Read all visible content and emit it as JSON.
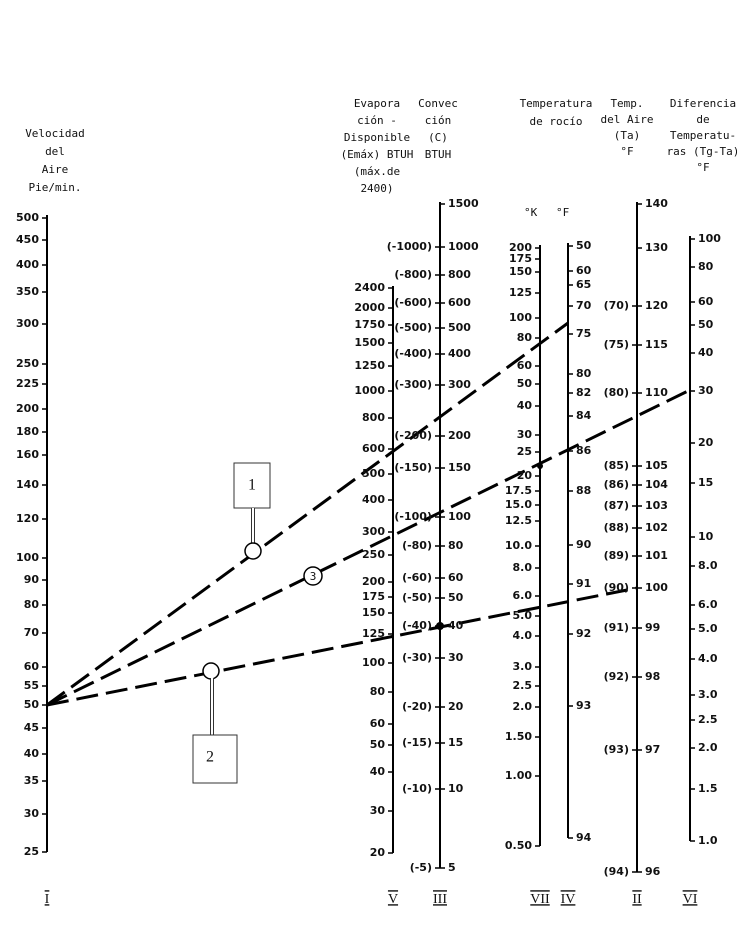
{
  "headers": {
    "velocity": [
      "Velocidad",
      "del",
      "Aire",
      "Pie/min."
    ],
    "evaporation": [
      "Evapora",
      "ción -",
      "Disponible",
      "(Emáx) BTUH",
      "(máx.de",
      "2400)"
    ],
    "convection": [
      "Convec",
      "ción",
      "(C)",
      "BTUH"
    ],
    "dew_point": [
      "Temperatura",
      "de rocío"
    ],
    "dew_units": [
      "°K",
      "°F"
    ],
    "air_temp": [
      "Temp.",
      "del Aire",
      "(Ta)",
      "°F"
    ],
    "difference": [
      "Diferencia",
      "de",
      "Temperatu-",
      "ras (Tg-Ta)",
      "°F"
    ]
  },
  "axes": [
    {
      "numeral": "I",
      "ticks": [
        "500",
        "450",
        "400",
        "350",
        "300",
        "250",
        "225",
        "200",
        "180",
        "160",
        "140",
        "120",
        "100",
        "90",
        "80",
        "70",
        "60",
        "55",
        "50",
        "45",
        "40",
        "35",
        "30",
        "25"
      ]
    },
    {
      "numeral": "V",
      "ticks": [
        "2400",
        "2000",
        "1750",
        "1500",
        "1250",
        "1000",
        "800",
        "600",
        "500",
        "400",
        "300",
        "250",
        "200",
        "175",
        "150",
        "125",
        "100",
        "80",
        "60",
        "50",
        "40",
        "30",
        "20"
      ]
    },
    {
      "numeral": "III",
      "ticks": [
        "1500",
        "1000",
        "800",
        "600",
        "500",
        "400",
        "300",
        "200",
        "150",
        "100",
        "80",
        "60",
        "50",
        "40",
        "30",
        "20",
        "15",
        "10",
        "5"
      ],
      "ticks_left": [
        "(-1000)",
        "(-800)",
        "(-600)",
        "(-500)",
        "(-400)",
        "(-300)",
        "(-200)",
        "(-150)",
        "(-100)",
        "(-80)",
        "(-60)",
        "(-50)",
        "(-40)",
        "(-30)",
        "(-20)",
        "(-15)",
        "(-10)",
        "(-5)"
      ]
    },
    {
      "numeral": "VII",
      "ticks": [
        "200",
        "175",
        "150",
        "125",
        "100",
        "80",
        "60",
        "50",
        "40",
        "30",
        "25",
        "20",
        "17.5",
        "15.0",
        "12.5",
        "10.0",
        "8.0",
        "6.0",
        "5.0",
        "4.0",
        "3.0",
        "2.5",
        "2.0",
        "1.50",
        "1.00",
        "0.50"
      ]
    },
    {
      "numeral": "IV",
      "ticks": [
        "50",
        "60",
        "65",
        "70",
        "75",
        "80",
        "82",
        "84",
        "86",
        "88",
        "90",
        "91",
        "92",
        "93",
        "94"
      ]
    },
    {
      "numeral": "II",
      "ticks": [
        "140",
        "130",
        "120",
        "115",
        "110",
        "105",
        "104",
        "103",
        "102",
        "101",
        "100",
        "99",
        "98",
        "97",
        "96"
      ],
      "ticks_left": [
        "(70)",
        "(75)",
        "(80)",
        "(85)",
        "(86)",
        "(87)",
        "(88)",
        "(89)",
        "(90)",
        "(91)",
        "(92)",
        "(93)",
        "(94)"
      ]
    },
    {
      "numeral": "VI",
      "ticks": [
        "100",
        "80",
        "60",
        "50",
        "40",
        "30",
        "20",
        "15",
        "10",
        "8.0",
        "6.0",
        "5.0",
        "4.0",
        "3.0",
        "2.5",
        "2.0",
        "1.5",
        "1.0"
      ]
    }
  ],
  "callouts": [
    "1",
    "2",
    "3"
  ]
}
